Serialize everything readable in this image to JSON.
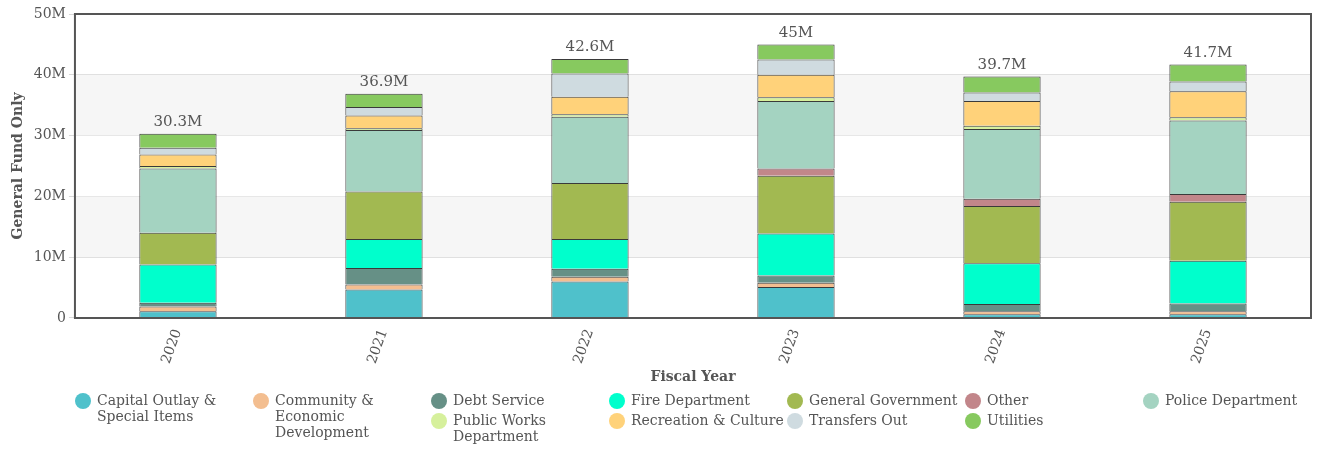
{
  "chart_data": {
    "type": "bar",
    "stacked": true,
    "xlabel": "Fiscal Year",
    "ylabel": "General Fund Only",
    "categories": [
      "2020",
      "2021",
      "2022",
      "2023",
      "2024",
      "2025"
    ],
    "series": [
      {
        "name": "Capital Outlay & Special Items",
        "color": "#4fc1cb",
        "values": [
          1.1,
          4.7,
          6.0,
          5.1,
          0.6,
          0.6
        ]
      },
      {
        "name": "Community & Economic Development",
        "color": "#f3be90",
        "values": [
          0.8,
          0.8,
          0.8,
          0.7,
          0.5,
          0.5
        ]
      },
      {
        "name": "Debt Service",
        "color": "#669086",
        "values": [
          0.6,
          2.7,
          1.3,
          1.2,
          1.2,
          1.3
        ]
      },
      {
        "name": "Fire Department",
        "color": "#00ffcc",
        "values": [
          6.3,
          4.8,
          4.9,
          6.9,
          6.7,
          7.0
        ]
      },
      {
        "name": "General Government",
        "color": "#a2b951",
        "values": [
          5.2,
          7.8,
          9.2,
          9.5,
          9.4,
          9.7
        ]
      },
      {
        "name": "Other",
        "color": "#c2868a",
        "values": [
          0,
          0,
          0,
          1.2,
          1.2,
          1.3
        ]
      },
      {
        "name": "Police Department",
        "color": "#a4d3c1",
        "values": [
          10.6,
          10.1,
          10.9,
          11.1,
          11.5,
          12.1
        ]
      },
      {
        "name": "Public Works Department",
        "color": "#d6f09c",
        "values": [
          0.4,
          0.3,
          0.4,
          0.6,
          0.5,
          0.5
        ]
      },
      {
        "name": "Recreation & Culture",
        "color": "#ffd27a",
        "values": [
          1.9,
          2.1,
          2.9,
          3.7,
          4.1,
          4.3
        ]
      },
      {
        "name": "Transfers Out",
        "color": "#cfdbe0",
        "values": [
          1.1,
          1.4,
          3.8,
          2.5,
          1.4,
          1.6
        ]
      },
      {
        "name": "Utilities",
        "color": "#87c95f",
        "values": [
          2.3,
          2.2,
          2.4,
          2.5,
          2.6,
          2.8
        ]
      }
    ],
    "totals": [
      "30.3M",
      "36.9M",
      "42.6M",
      "45M",
      "39.7M",
      "41.7M"
    ],
    "ylim": [
      0,
      50
    ],
    "yticks": [
      0,
      {
        "value": 10,
        "label": "10M"
      },
      {
        "value": 20,
        "label": "20M"
      },
      {
        "value": 30,
        "label": "30M"
      },
      {
        "value": 40,
        "label": "40M"
      },
      {
        "value": 50,
        "label": "50M"
      }
    ],
    "bands": [
      {
        "axis": "y",
        "from": 10,
        "to": 20,
        "color": "#f6f6f6"
      },
      {
        "axis": "y",
        "from": 30,
        "to": 40,
        "color": "#f6f6f6"
      }
    ],
    "grid": "y",
    "legend": "bottom"
  }
}
